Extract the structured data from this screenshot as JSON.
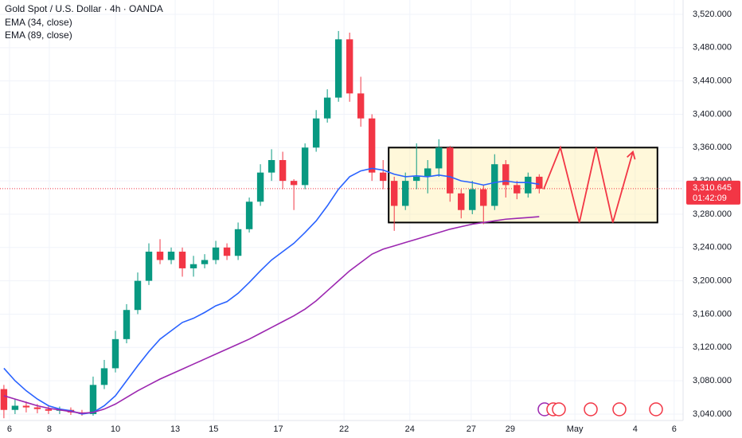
{
  "chart_data": {
    "type": "candlestick",
    "title": "Gold Spot / U.S. Dollar · 4h · OANDA",
    "x": [
      0,
      1,
      2,
      3,
      4,
      5,
      6,
      7,
      8,
      9,
      10,
      11,
      12,
      13,
      14,
      15,
      16,
      17,
      18,
      19,
      20,
      21,
      22,
      23,
      24,
      25,
      26,
      27,
      28,
      29,
      30,
      31,
      32,
      33,
      34,
      35,
      36,
      37,
      38,
      39,
      40,
      41,
      42,
      43,
      44,
      45,
      46,
      47,
      48
    ],
    "open": [
      3070,
      3045,
      3050,
      3048,
      3046,
      3044,
      3045,
      3042,
      3040,
      3075,
      3095,
      3130,
      3165,
      3200,
      3235,
      3225,
      3235,
      3215,
      3220,
      3225,
      3240,
      3230,
      3262,
      3295,
      3330,
      3345,
      3320,
      3315,
      3360,
      3395,
      3420,
      3490,
      3425,
      3395,
      3330,
      3320,
      3290,
      3320,
      3325,
      3335,
      3360,
      3305,
      3285,
      3310,
      3290,
      3340,
      3315,
      3305,
      3325
    ],
    "high": [
      3075,
      3058,
      3055,
      3052,
      3050,
      3049,
      3048,
      3045,
      3085,
      3105,
      3140,
      3172,
      3210,
      3245,
      3250,
      3240,
      3240,
      3230,
      3232,
      3248,
      3245,
      3270,
      3300,
      3340,
      3358,
      3355,
      3322,
      3365,
      3405,
      3430,
      3500,
      3498,
      3445,
      3400,
      3345,
      3325,
      3330,
      3365,
      3345,
      3370,
      3362,
      3310,
      3320,
      3315,
      3352,
      3345,
      3320,
      3330,
      3328
    ],
    "low": [
      3035,
      3040,
      3042,
      3041,
      3040,
      3040,
      3039,
      3038,
      3038,
      3070,
      3090,
      3125,
      3160,
      3195,
      3220,
      3220,
      3205,
      3205,
      3215,
      3220,
      3225,
      3225,
      3258,
      3290,
      3320,
      3310,
      3285,
      3310,
      3355,
      3390,
      3415,
      3415,
      3385,
      3320,
      3310,
      3260,
      3285,
      3310,
      3305,
      3325,
      3295,
      3275,
      3280,
      3268,
      3285,
      3300,
      3298,
      3300,
      3305
    ],
    "close": [
      3045,
      3050,
      3048,
      3046,
      3044,
      3045,
      3042,
      3040,
      3075,
      3095,
      3130,
      3165,
      3200,
      3235,
      3225,
      3235,
      3215,
      3220,
      3225,
      3240,
      3230,
      3262,
      3295,
      3330,
      3345,
      3320,
      3315,
      3360,
      3395,
      3420,
      3490,
      3425,
      3395,
      3330,
      3320,
      3290,
      3320,
      3325,
      3335,
      3360,
      3305,
      3285,
      3310,
      3290,
      3340,
      3315,
      3305,
      3325,
      3310.645
    ],
    "up_color": "#089981",
    "down_color": "#f23645",
    "series": [
      {
        "name": "EMA (34, close)",
        "color": "#2962ff",
        "values": [
          3095,
          3080,
          3068,
          3058,
          3050,
          3046,
          3044,
          3040,
          3042,
          3050,
          3062,
          3080,
          3098,
          3115,
          3130,
          3140,
          3150,
          3155,
          3162,
          3170,
          3175,
          3185,
          3198,
          3212,
          3225,
          3235,
          3245,
          3258,
          3272,
          3290,
          3310,
          3325,
          3332,
          3335,
          3333,
          3328,
          3325,
          3326,
          3325,
          3327,
          3325,
          3320,
          3318,
          3315,
          3318,
          3320,
          3318,
          3318,
          3316
        ]
      },
      {
        "name": "EMA (89, close)",
        "color": "#9c27b0",
        "values": [
          3062,
          3058,
          3054,
          3050,
          3047,
          3045,
          3043,
          3041,
          3042,
          3046,
          3052,
          3060,
          3068,
          3075,
          3082,
          3088,
          3094,
          3100,
          3106,
          3112,
          3118,
          3124,
          3130,
          3137,
          3144,
          3151,
          3158,
          3166,
          3176,
          3188,
          3200,
          3212,
          3222,
          3232,
          3238,
          3242,
          3246,
          3250,
          3254,
          3258,
          3262,
          3265,
          3268,
          3270,
          3272,
          3274,
          3275,
          3276,
          3277
        ]
      }
    ],
    "xlim": [
      -0.35,
      60.9
    ],
    "ylim": [
      3032.3,
      3537.2
    ],
    "yticks": [
      {
        "value": 3040,
        "label": "3,040.000"
      },
      {
        "value": 3080,
        "label": "3,080.000"
      },
      {
        "value": 3120,
        "label": "3,120.000"
      },
      {
        "value": 3160,
        "label": "3,160.000"
      },
      {
        "value": 3200,
        "label": "3,200.000"
      },
      {
        "value": 3240,
        "label": "3,240.000"
      },
      {
        "value": 3280,
        "label": "3,280.000"
      },
      {
        "value": 3320,
        "label": "3,320.000"
      },
      {
        "value": 3360,
        "label": "3,360.000"
      },
      {
        "value": 3400,
        "label": "3,400.000"
      },
      {
        "value": 3440,
        "label": "3,440.000"
      },
      {
        "value": 3480,
        "label": "3,480.000"
      },
      {
        "value": 3520,
        "label": "3,520.000"
      }
    ],
    "xticks": [
      {
        "value": 0.5,
        "label": "6"
      },
      {
        "value": 4.07,
        "label": "8"
      },
      {
        "value": 10,
        "label": "10"
      },
      {
        "value": 15.36,
        "label": "13"
      },
      {
        "value": 18.8,
        "label": "15"
      },
      {
        "value": 24.6,
        "label": "17"
      },
      {
        "value": 30.5,
        "label": "22"
      },
      {
        "value": 36.4,
        "label": "24"
      },
      {
        "value": 41.9,
        "label": "27"
      },
      {
        "value": 45.4,
        "label": "29"
      },
      {
        "value": 51.2,
        "label": "May"
      },
      {
        "value": 56.6,
        "label": "4"
      },
      {
        "value": 60.1,
        "label": "6"
      }
    ],
    "last_price": {
      "value": 3310.645,
      "label": "3,310.645"
    },
    "countdown": "01:42:09",
    "range_box": {
      "x": [
        34.5,
        58.6
      ],
      "y": [
        3270,
        3360
      ]
    },
    "projection": {
      "x": [
        48.4,
        49.9,
        51.6,
        53.1,
        54.6,
        56.4
      ],
      "y": [
        3310,
        3360,
        3270,
        3360,
        3270,
        3355
      ],
      "color": "#f23645"
    },
    "grid": true
  }
}
